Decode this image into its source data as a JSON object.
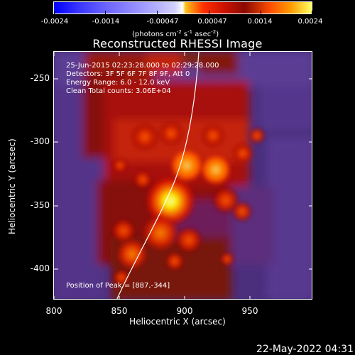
{
  "colorbar": {
    "tick_labels": [
      "-0.0024",
      "-0.0014",
      "-0.00047",
      "0.00047",
      "0.0014",
      "0.0024"
    ],
    "units_prefix": "(photons cm",
    "units_sup1": "-2",
    "units_mid1": " s",
    "units_sup2": "-1",
    "units_mid2": " asec",
    "units_sup3": "-2",
    "units_suffix": ")"
  },
  "title": "Reconstructed RHESSI Image",
  "info": {
    "line1": "25-Jun-2015 02:23:28.000 to 02:29:28.000",
    "line2": "Detectors: 3F 5F 6F 7F 8F 9F, Att 0",
    "line3": "Energy Range: 6.0 - 12.0 keV",
    "line4": "Clean    Total counts: 3.06E+04"
  },
  "peak_text": "Position of Peak = [887,-344]",
  "axes": {
    "xlabel": "Heliocentric X (arcsec)",
    "ylabel": "Heliocentric Y (arcsec)",
    "xticks": [
      "800",
      "850",
      "900",
      "950"
    ],
    "yticks": [
      "-250",
      "-300",
      "-350",
      "-400"
    ]
  },
  "footer_date": "22-May-2022 04:31",
  "colors": {
    "background": "#000000",
    "limb_line": "#ffffff"
  }
}
